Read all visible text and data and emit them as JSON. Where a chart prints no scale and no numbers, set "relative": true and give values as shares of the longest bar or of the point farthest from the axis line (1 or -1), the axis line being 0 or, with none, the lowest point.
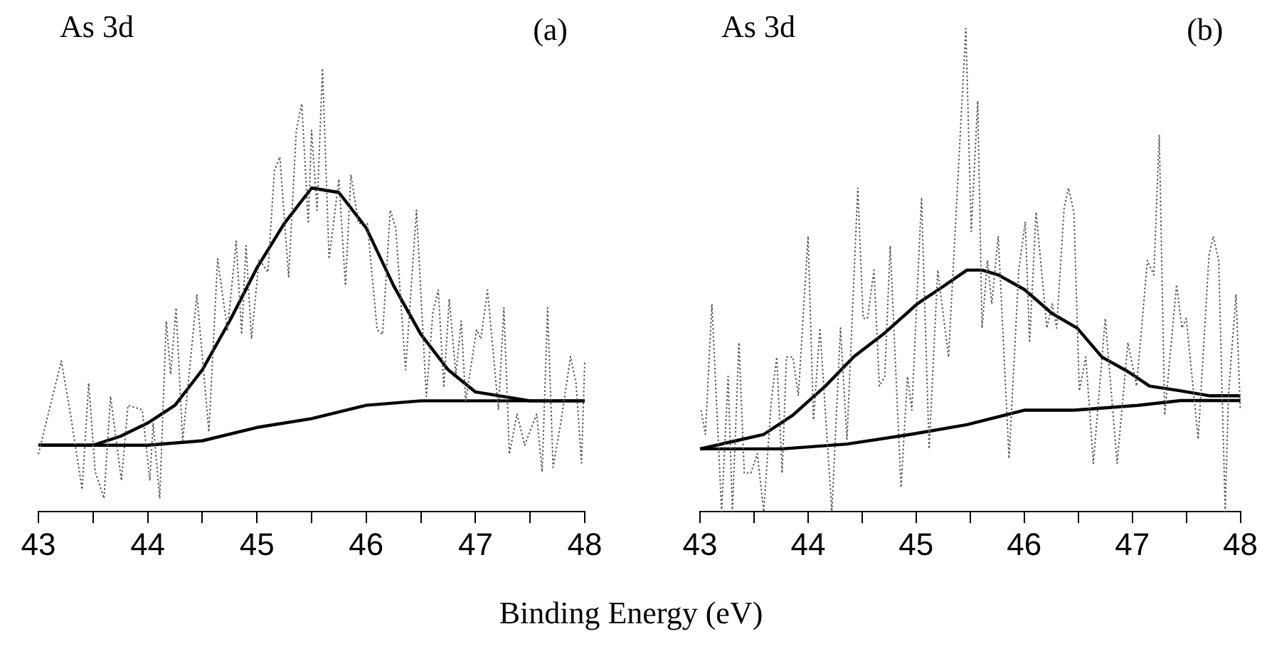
{
  "chart_data": [
    {
      "type": "line",
      "relative": true,
      "xlabel": "Binding Energy (eV)",
      "annotations": [
        "As 3d",
        "(a)"
      ],
      "xlim": [
        43,
        48
      ],
      "xticks": [
        43,
        {
          "value": 43.5,
          "label": null
        },
        44,
        {
          "value": 44.5,
          "label": null
        },
        45,
        {
          "value": 45.5,
          "label": null
        },
        46,
        {
          "value": 46.5,
          "label": null
        },
        47,
        {
          "value": 47.5,
          "label": null
        },
        48
      ],
      "series": [
        {
          "color": "#555555",
          "line_style": "dotted",
          "x": [
            43.0,
            43.1,
            43.21,
            43.3,
            43.4,
            43.46,
            43.52,
            43.6,
            43.66,
            43.76,
            43.82,
            43.95,
            44.02,
            44.05,
            44.11,
            44.17,
            44.21,
            44.26,
            44.32,
            44.45,
            44.56,
            44.64,
            44.73,
            44.81,
            44.86,
            44.9,
            44.95,
            45.02,
            45.1,
            45.16,
            45.21,
            45.29,
            45.36,
            45.41,
            45.47,
            45.5,
            45.55,
            45.6,
            45.66,
            45.75,
            45.81,
            45.86,
            45.93,
            46.01,
            46.1,
            46.15,
            46.22,
            46.27,
            46.36,
            46.46,
            46.55,
            46.61,
            46.66,
            46.71,
            46.76,
            46.82,
            46.87,
            46.91,
            47.01,
            47.05,
            47.11,
            47.21,
            47.26,
            47.31,
            47.38,
            47.45,
            47.56,
            47.61,
            47.66,
            47.71,
            47.78,
            47.87,
            47.92,
            47.97,
            48.0
          ],
          "values": [
            0.13,
            0.23,
            0.34,
            0.21,
            0.05,
            0.29,
            0.09,
            0.03,
            0.26,
            0.07,
            0.24,
            0.23,
            0.07,
            0.2,
            0.03,
            0.43,
            0.31,
            0.46,
            0.16,
            0.49,
            0.18,
            0.57,
            0.41,
            0.61,
            0.4,
            0.6,
            0.39,
            0.57,
            0.54,
            0.77,
            0.8,
            0.53,
            0.86,
            0.92,
            0.65,
            0.86,
            0.68,
            1.0,
            0.57,
            0.75,
            0.51,
            0.76,
            0.65,
            0.65,
            0.41,
            0.4,
            0.68,
            0.64,
            0.32,
            0.68,
            0.26,
            0.45,
            0.5,
            0.28,
            0.48,
            0.31,
            0.43,
            0.25,
            0.41,
            0.39,
            0.5,
            0.23,
            0.46,
            0.13,
            0.22,
            0.15,
            0.22,
            0.09,
            0.46,
            0.1,
            0.2,
            0.35,
            0.29,
            0.11,
            0.34
          ]
        },
        {
          "color": "#000000",
          "line_style": "solid",
          "x": [
            43,
            43.5,
            43.75,
            44,
            44.25,
            44.5,
            44.75,
            45,
            45.25,
            45.5,
            45.75,
            46,
            46.25,
            46.5,
            46.75,
            47,
            47.25,
            47.5,
            48
          ],
          "values": [
            0.15,
            0.15,
            0.17,
            0.2,
            0.24,
            0.32,
            0.43,
            0.55,
            0.65,
            0.73,
            0.72,
            0.64,
            0.51,
            0.4,
            0.32,
            0.27,
            0.26,
            0.25,
            0.25
          ]
        },
        {
          "color": "#000000",
          "line_style": "solid",
          "x": [
            43,
            44,
            44.5,
            45,
            45.5,
            46,
            46.5,
            47,
            48
          ],
          "values": [
            0.15,
            0.15,
            0.16,
            0.19,
            0.21,
            0.24,
            0.25,
            0.25,
            0.25
          ]
        }
      ]
    },
    {
      "type": "line",
      "relative": true,
      "annotations": [
        "As 3d",
        "(b)"
      ],
      "xlim": [
        43,
        48
      ],
      "xticks": [
        43,
        {
          "value": 43.5,
          "label": null
        },
        44,
        {
          "value": 44.5,
          "label": null
        },
        45,
        {
          "value": 45.5,
          "label": null
        },
        46,
        {
          "value": 46.5,
          "label": null
        },
        47,
        {
          "value": 47.5,
          "label": null
        },
        48
      ],
      "series": [
        {
          "color": "#555555",
          "line_style": "dotted",
          "x": [
            43.01,
            43.05,
            43.11,
            43.2,
            43.26,
            43.3,
            43.36,
            43.41,
            43.47,
            43.53,
            43.59,
            43.66,
            43.71,
            43.76,
            43.8,
            43.86,
            43.91,
            44.0,
            44.05,
            44.11,
            44.22,
            44.3,
            44.36,
            44.46,
            44.51,
            44.55,
            44.61,
            44.66,
            44.71,
            44.76,
            44.86,
            44.92,
            44.96,
            45.05,
            45.12,
            45.2,
            45.3,
            45.38,
            45.46,
            45.51,
            45.57,
            45.61,
            45.66,
            45.7,
            45.76,
            45.86,
            45.95,
            46.01,
            46.05,
            46.11,
            46.21,
            46.26,
            46.3,
            46.37,
            46.41,
            46.46,
            46.51,
            46.57,
            46.64,
            46.75,
            46.86,
            46.96,
            47.04,
            47.14,
            47.2,
            47.25,
            47.3,
            47.41,
            47.46,
            47.5,
            47.61,
            47.71,
            47.75,
            47.8,
            47.86,
            47.89,
            47.96,
            48.0
          ],
          "values": [
            0.21,
            0.16,
            0.43,
            0,
            0.28,
            0,
            0.35,
            0.08,
            0.08,
            0.12,
            0,
            0.23,
            0.32,
            0.08,
            0.32,
            0.32,
            0.24,
            0.57,
            0.19,
            0.38,
            0,
            0.38,
            0.15,
            0.67,
            0.4,
            0.4,
            0.5,
            0.26,
            0.28,
            0.55,
            0.05,
            0.28,
            0.21,
            0.65,
            0.13,
            0.5,
            0.32,
            0.66,
            1.0,
            0.58,
            0.85,
            0.38,
            0.52,
            0.43,
            0.57,
            0.11,
            0.5,
            0.6,
            0.35,
            0.62,
            0.38,
            0.43,
            0.38,
            0.63,
            0.67,
            0.62,
            0.25,
            0.32,
            0.1,
            0.4,
            0.1,
            0.35,
            0.26,
            0.52,
            0.49,
            0.78,
            0.2,
            0.47,
            0.38,
            0.4,
            0.15,
            0.53,
            0.57,
            0.52,
            0,
            0.24,
            0.45,
            0.21
          ]
        },
        {
          "color": "#000000",
          "line_style": "solid",
          "x": [
            43.0,
            43.59,
            43.86,
            44.16,
            44.42,
            44.71,
            45.01,
            45.21,
            45.47,
            45.61,
            45.76,
            46.0,
            46.26,
            46.49,
            46.72,
            46.96,
            47.16,
            47.45,
            47.71,
            48.0
          ],
          "values": [
            0.13,
            0.16,
            0.2,
            0.26,
            0.32,
            0.37,
            0.43,
            0.46,
            0.5,
            0.5,
            0.49,
            0.46,
            0.41,
            0.38,
            0.32,
            0.29,
            0.26,
            0.25,
            0.24,
            0.24
          ]
        },
        {
          "color": "#000000",
          "line_style": "solid",
          "x": [
            43.0,
            43.76,
            44.36,
            44.95,
            45.47,
            46.0,
            46.46,
            47.05,
            47.45,
            48.0
          ],
          "values": [
            0.13,
            0.13,
            0.14,
            0.16,
            0.18,
            0.21,
            0.21,
            0.22,
            0.23,
            0.23
          ]
        }
      ]
    }
  ]
}
